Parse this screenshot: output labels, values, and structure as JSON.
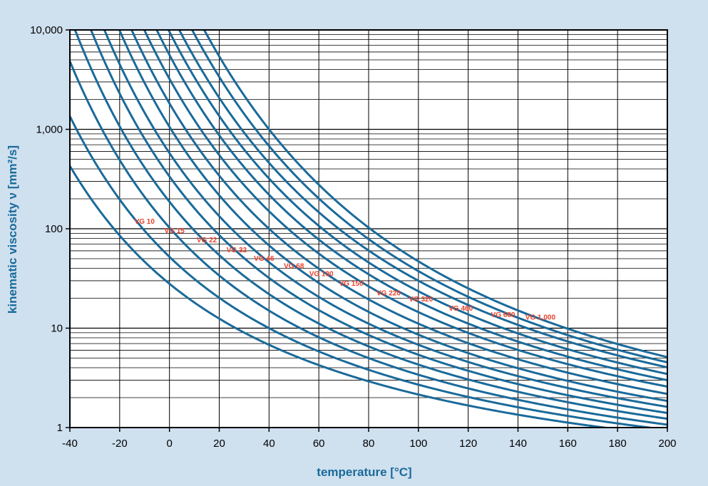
{
  "colors": {
    "background": "#cfe0ef",
    "plot_background": "#ffffff",
    "curve": "#1a6a9a",
    "label": "#e8412c",
    "axis_title": "#1a6a9a",
    "grid": "#000000"
  },
  "chart_data": {
    "type": "line",
    "title": "",
    "xlabel": "temperature [°C]",
    "ylabel": "kinematic viscosity ν [mm²/s]",
    "xlim": [
      -40,
      200
    ],
    "ylim": [
      1,
      10000
    ],
    "yscale": "log",
    "x_ticks": [
      -40,
      -20,
      0,
      20,
      40,
      60,
      80,
      100,
      120,
      140,
      160,
      180,
      200
    ],
    "x_tick_labels": [
      "-40",
      "-20",
      "0",
      "20",
      "40",
      "60",
      "80",
      "100",
      "120",
      "140",
      "160",
      "180",
      "200"
    ],
    "y_ticks": [
      1,
      10,
      100,
      1000,
      10000
    ],
    "y_tick_labels": [
      "1",
      "10",
      "100",
      "1,000",
      "10,000"
    ],
    "grid": true,
    "series": [
      {
        "name": "",
        "label_text": "",
        "t40": 6.8,
        "t100": 2.15
      },
      {
        "name": "VG 10",
        "label_text": "VG 10",
        "t40": 10,
        "t100": 2.7,
        "label_at": {
          "x": -10,
          "y": 118
        }
      },
      {
        "name": "VG 15",
        "label_text": "VG 15",
        "t40": 15,
        "t100": 3.4,
        "label_at": {
          "x": 2,
          "y": 95
        }
      },
      {
        "name": "VG 22",
        "label_text": "VG 22",
        "t40": 22,
        "t100": 4.3,
        "label_at": {
          "x": 15,
          "y": 77
        }
      },
      {
        "name": "VG 32",
        "label_text": "VG 32",
        "t40": 32,
        "t100": 5.4,
        "label_at": {
          "x": 27,
          "y": 61
        }
      },
      {
        "name": "VG 46",
        "label_text": "VG 46",
        "t40": 46,
        "t100": 6.8,
        "label_at": {
          "x": 38,
          "y": 50
        }
      },
      {
        "name": "VG 68",
        "label_text": "VG 68",
        "t40": 68,
        "t100": 8.6,
        "label_at": {
          "x": 50,
          "y": 42
        }
      },
      {
        "name": "VG 100",
        "label_text": "VG 100",
        "t40": 100,
        "t100": 11.1,
        "label_at": {
          "x": 61,
          "y": 35
        }
      },
      {
        "name": "VG 150",
        "label_text": "VG 150",
        "t40": 150,
        "t100": 14.5,
        "label_at": {
          "x": 73,
          "y": 28
        }
      },
      {
        "name": "VG 220",
        "label_text": "VG 220",
        "t40": 220,
        "t100": 18.5,
        "label_at": {
          "x": 88,
          "y": 22.5
        }
      },
      {
        "name": "VG 320",
        "label_text": "VG 320",
        "t40": 320,
        "t100": 23.5,
        "label_at": {
          "x": 101,
          "y": 19.5
        }
      },
      {
        "name": "VG 460",
        "label_text": "VG 460",
        "t40": 460,
        "t100": 30,
        "label_at": {
          "x": 117,
          "y": 15.8
        }
      },
      {
        "name": "VG 680",
        "label_text": "VG 680",
        "t40": 680,
        "t100": 37.5,
        "label_at": {
          "x": 134,
          "y": 13.6
        }
      },
      {
        "name": "VG 1,000",
        "label_text": "VG 1,000",
        "t40": 1000,
        "t100": 47,
        "label_at": {
          "x": 149,
          "y": 12.8
        }
      }
    ]
  }
}
